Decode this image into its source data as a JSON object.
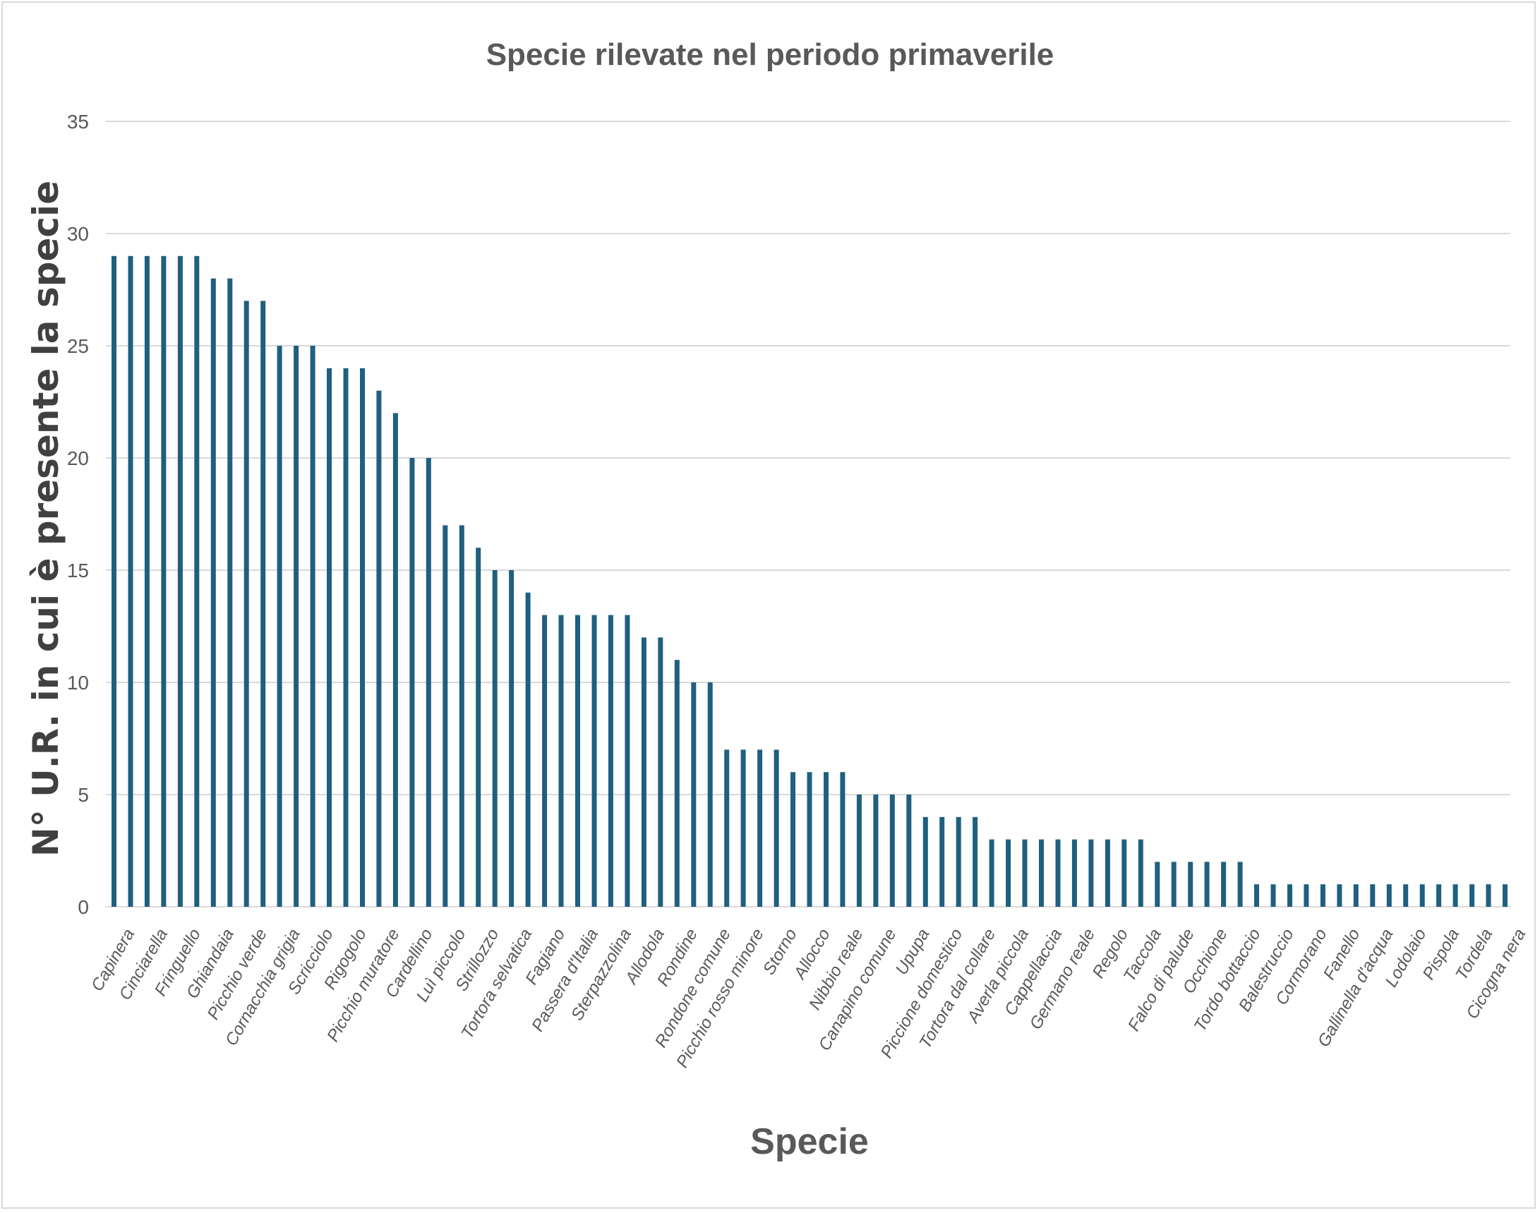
{
  "colors": {
    "bar": "#1f5f7f",
    "grid": "#d9d9d9",
    "text": "#595959"
  },
  "chart_data": {
    "type": "bar",
    "title": "Specie rilevate nel periodo primaverile",
    "xlabel": "Specie",
    "ylabel": "N° U.R. in cui è presente la specie",
    "ylim": [
      0,
      35
    ],
    "yticks": [
      "0",
      "5",
      "10",
      "15",
      "20",
      "25",
      "30",
      "35"
    ],
    "grid": true,
    "labeled_categories": [
      "Capinera",
      "Cinciarella",
      "Fringuello",
      "Ghiandaia",
      "Picchio verde",
      "Cornacchia grigia",
      "Scricciolo",
      "Rigogolo",
      "Picchio muratore",
      "Cardellino",
      "Luì piccolo",
      "Strillozzo",
      "Tortora selvatica",
      "Fagiano",
      "Passera d'Italia",
      "Sterpazzolina",
      "Allodola",
      "Rondine",
      "Rondone comune",
      "Picchio rosso minore",
      "Storno",
      "Allocco",
      "Nibbio reale",
      "Canapino comune",
      "Upupa",
      "Piccione domestico",
      "Tortora dal collare",
      "Averla piccola",
      "Cappellaccia",
      "Germano reale",
      "Regolo",
      "Taccola",
      "Falco di palude",
      "Occhione",
      "Tordo bottaccio",
      "Balestruccio",
      "Cormorano",
      "Fanello",
      "Gallinella d'acqua",
      "Lodolaio",
      "Pispola",
      "Tordela",
      "Cicogna nera"
    ],
    "labeled_positions": [
      1,
      3,
      5,
      7,
      9,
      11,
      13,
      15,
      17,
      19,
      21,
      23,
      25,
      27,
      29,
      31,
      33,
      35,
      37,
      39,
      41,
      43,
      45,
      47,
      49,
      51,
      53,
      55,
      57,
      59,
      61,
      63,
      65,
      67,
      69,
      71,
      73,
      75,
      77,
      79,
      81,
      83,
      85
    ],
    "values": [
      29,
      29,
      29,
      29,
      29,
      29,
      28,
      28,
      27,
      27,
      25,
      25,
      25,
      24,
      24,
      24,
      23,
      22,
      20,
      20,
      17,
      17,
      16,
      15,
      15,
      14,
      13,
      13,
      13,
      13,
      13,
      13,
      12,
      12,
      11,
      10,
      10,
      7,
      7,
      7,
      7,
      6,
      6,
      6,
      6,
      5,
      5,
      5,
      5,
      4,
      4,
      4,
      4,
      3,
      3,
      3,
      3,
      3,
      3,
      3,
      3,
      3,
      3,
      2,
      2,
      2,
      2,
      2,
      2,
      1,
      1,
      1,
      1,
      1,
      1,
      1,
      1,
      1,
      1,
      1,
      1,
      1,
      1,
      1,
      1
    ]
  }
}
